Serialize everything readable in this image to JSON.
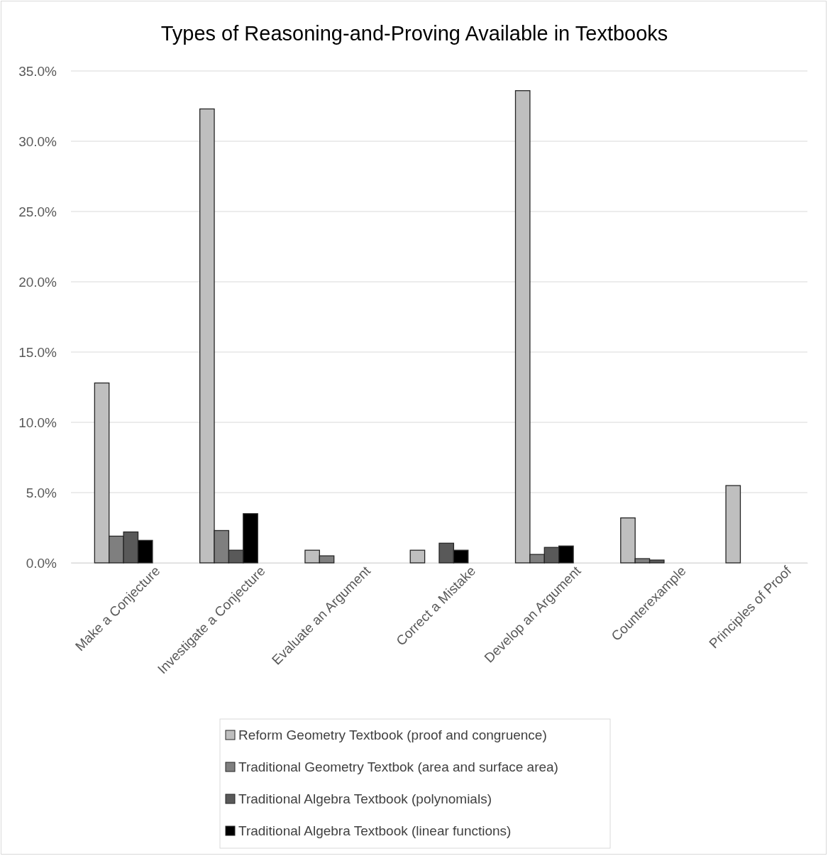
{
  "chart_data": {
    "type": "bar",
    "title": "Types of Reasoning-and-Proving Available in Textbooks",
    "categories": [
      "Make a Conjecture",
      "Investigate a Conjecture",
      "Evaluate an Argument",
      "Correct a Mistake",
      "Develop an Argument",
      "Counterexample",
      "Principles of Proof"
    ],
    "series": [
      {
        "name": "Reform Geometry Textbook (proof and congruence)",
        "color": "#bfbfbf",
        "values": [
          12.8,
          32.3,
          0.9,
          0.9,
          33.6,
          3.2,
          5.5
        ]
      },
      {
        "name": "Traditional Geometry Textbok (area and surface area)",
        "color": "#7f7f7f",
        "values": [
          1.9,
          2.3,
          0.5,
          0,
          0.6,
          0.3,
          0
        ]
      },
      {
        "name": "Traditional Algebra Textbook (polynomials)",
        "color": "#595959",
        "values": [
          2.2,
          0.9,
          0,
          1.4,
          1.1,
          0.2,
          0
        ]
      },
      {
        "name": "Traditional Algebra Textbook (linear functions)",
        "color": "#000000",
        "values": [
          1.6,
          3.5,
          0,
          0.9,
          1.2,
          0,
          0
        ]
      }
    ],
    "ylim": [
      0,
      35
    ],
    "yticks": [
      {
        "value": 0,
        "label": "0.0%"
      },
      {
        "value": 5,
        "label": "5.0%"
      },
      {
        "value": 10,
        "label": "10.0%"
      },
      {
        "value": 15,
        "label": "15.0%"
      },
      {
        "value": 20,
        "label": "20.0%"
      },
      {
        "value": 25,
        "label": "25.0%"
      },
      {
        "value": 30,
        "label": "30.0%"
      },
      {
        "value": 35,
        "label": "35.0%"
      }
    ],
    "grid": "y",
    "legend": "bottom"
  }
}
